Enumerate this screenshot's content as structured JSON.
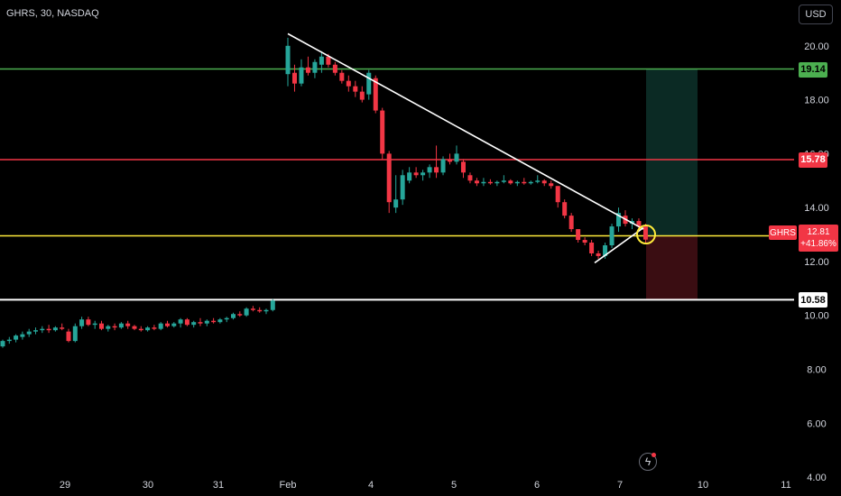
{
  "header": {
    "symbol": "GHRS, 30, NASDAQ",
    "currency": "USD"
  },
  "levels": [
    {
      "price": 19.14,
      "label": "19.14",
      "color": "#4caf50",
      "text_color": "#000000"
    },
    {
      "price": 15.78,
      "label": "15.78",
      "color": "#f23645",
      "text_color": "#ffffff"
    },
    {
      "price": 12.95,
      "label": "",
      "color": "#ffeb3b",
      "text_color": "#000000"
    },
    {
      "price": 10.58,
      "label": "10.58",
      "color": "#ffffff",
      "text_color": "#000000"
    }
  ],
  "last_price": {
    "ticker": "GHRS",
    "price": "12.81",
    "change": "+41.86%"
  },
  "chart_data": {
    "type": "candlestick",
    "y_axis": {
      "ticks": [
        4.0,
        6.0,
        8.0,
        10.0,
        12.0,
        14.0,
        16.0,
        18.0,
        20.0
      ],
      "tick_labels": [
        "4.00",
        "6.00",
        "8.00",
        "10.00",
        "12.00",
        "14.00",
        "16.00",
        "18.00",
        "20.00"
      ],
      "ylim": [
        3.3,
        21.7
      ]
    },
    "x_axis": {
      "labels": [
        "29",
        "30",
        "31",
        "Feb",
        "4",
        "5",
        "6",
        "7",
        "10",
        "11"
      ],
      "positions": [
        72,
        164,
        242,
        319,
        411,
        503,
        595,
        687,
        779,
        871
      ]
    },
    "candles_pre": [
      [
        8.85,
        9.1,
        8.8,
        9.05
      ],
      [
        9.05,
        9.2,
        8.95,
        9.1
      ],
      [
        9.1,
        9.3,
        9.0,
        9.25
      ],
      [
        9.2,
        9.4,
        9.1,
        9.3
      ],
      [
        9.3,
        9.5,
        9.2,
        9.4
      ],
      [
        9.4,
        9.55,
        9.3,
        9.45
      ],
      [
        9.45,
        9.6,
        9.35,
        9.5
      ],
      [
        9.5,
        9.65,
        9.35,
        9.45
      ],
      [
        9.45,
        9.6,
        9.4,
        9.55
      ],
      [
        9.55,
        9.7,
        9.45,
        9.5
      ],
      [
        9.4,
        9.5,
        9.0,
        9.05
      ],
      [
        9.05,
        9.7,
        9.0,
        9.6
      ],
      [
        9.6,
        9.95,
        9.5,
        9.85
      ],
      [
        9.85,
        9.95,
        9.6,
        9.65
      ],
      [
        9.65,
        9.8,
        9.5,
        9.7
      ],
      [
        9.7,
        9.8,
        9.45,
        9.5
      ],
      [
        9.5,
        9.65,
        9.4,
        9.6
      ],
      [
        9.6,
        9.7,
        9.45,
        9.55
      ],
      [
        9.55,
        9.75,
        9.5,
        9.7
      ],
      [
        9.7,
        9.8,
        9.5,
        9.6
      ],
      [
        9.6,
        9.65,
        9.45,
        9.5
      ],
      [
        9.5,
        9.6,
        9.4,
        9.45
      ],
      [
        9.45,
        9.6,
        9.4,
        9.55
      ],
      [
        9.55,
        9.65,
        9.45,
        9.5
      ],
      [
        9.5,
        9.75,
        9.45,
        9.7
      ],
      [
        9.7,
        9.8,
        9.55,
        9.6
      ],
      [
        9.6,
        9.75,
        9.55,
        9.7
      ],
      [
        9.7,
        9.9,
        9.55,
        9.85
      ],
      [
        9.85,
        9.9,
        9.6,
        9.65
      ],
      [
        9.65,
        9.8,
        9.55,
        9.75
      ],
      [
        9.75,
        9.9,
        9.6,
        9.7
      ],
      [
        9.7,
        9.85,
        9.6,
        9.8
      ],
      [
        9.8,
        9.9,
        9.7,
        9.75
      ],
      [
        9.75,
        9.9,
        9.7,
        9.85
      ],
      [
        9.85,
        9.95,
        9.75,
        9.9
      ],
      [
        9.9,
        10.1,
        9.85,
        10.05
      ],
      [
        10.05,
        10.15,
        9.95,
        10.0
      ],
      [
        10.0,
        10.3,
        9.95,
        10.25
      ],
      [
        10.25,
        10.35,
        10.15,
        10.2
      ],
      [
        10.2,
        10.3,
        10.1,
        10.15
      ],
      [
        10.15,
        10.25,
        10.05,
        10.2
      ],
      [
        10.2,
        10.6,
        10.15,
        10.55
      ]
    ],
    "candles_feb": [
      [
        18.95,
        20.3,
        18.5,
        20.0
      ],
      [
        19.0,
        19.3,
        18.3,
        18.6
      ],
      [
        18.6,
        19.5,
        18.5,
        19.2
      ],
      [
        19.2,
        19.6,
        18.9,
        19.0
      ],
      [
        19.0,
        19.5,
        18.8,
        19.4
      ],
      [
        19.3,
        19.8,
        19.0,
        19.6
      ],
      [
        19.6,
        19.7,
        19.2,
        19.3
      ],
      [
        19.3,
        19.4,
        18.9,
        19.0
      ],
      [
        19.0,
        19.1,
        18.6,
        18.7
      ],
      [
        18.7,
        18.9,
        18.3,
        18.5
      ],
      [
        18.5,
        18.7,
        18.1,
        18.3
      ],
      [
        18.3,
        18.5,
        17.9,
        18.0
      ],
      [
        18.2,
        19.1,
        18.0,
        19.0
      ],
      [
        18.8,
        18.9,
        17.5,
        17.6
      ],
      [
        17.6,
        17.7,
        15.8,
        16.0
      ],
      [
        16.0,
        16.1,
        13.8,
        14.2
      ],
      [
        14.0,
        15.2,
        13.8,
        14.3
      ],
      [
        14.3,
        15.4,
        14.1,
        15.2
      ],
      [
        15.0,
        15.5,
        14.9,
        15.3
      ],
      [
        15.3,
        15.5,
        15.1,
        15.2
      ],
      [
        15.2,
        15.4,
        15.0,
        15.3
      ],
      [
        15.3,
        15.6,
        15.1,
        15.5
      ],
      [
        15.5,
        16.3,
        15.1,
        15.3
      ],
      [
        15.3,
        15.9,
        15.2,
        15.8
      ],
      [
        15.8,
        16.0,
        15.6,
        15.7
      ],
      [
        15.7,
        16.3,
        15.6,
        16.0
      ],
      [
        15.7,
        15.8,
        15.1,
        15.3
      ],
      [
        15.2,
        15.3,
        14.9,
        15.0
      ],
      [
        15.0,
        15.1,
        14.8,
        14.9
      ],
      [
        14.9,
        15.1,
        14.8,
        14.95
      ],
      [
        14.95,
        15.05,
        14.85,
        14.9
      ],
      [
        14.9,
        15.0,
        14.8,
        14.95
      ],
      [
        14.95,
        15.2,
        14.9,
        15.0
      ],
      [
        15.0,
        15.05,
        14.85,
        14.9
      ],
      [
        14.9,
        15.0,
        14.8,
        14.95
      ],
      [
        14.95,
        15.1,
        14.85,
        14.9
      ],
      [
        14.9,
        15.0,
        14.85,
        14.95
      ],
      [
        14.95,
        15.2,
        14.9,
        15.0
      ],
      [
        15.0,
        15.05,
        14.8,
        14.9
      ],
      [
        14.9,
        15.0,
        14.7,
        14.8
      ],
      [
        14.8,
        14.8,
        14.0,
        14.2
      ],
      [
        14.2,
        14.3,
        13.6,
        13.7
      ],
      [
        13.7,
        13.8,
        13.1,
        13.2
      ],
      [
        13.2,
        13.2,
        12.7,
        12.8
      ],
      [
        12.8,
        12.9,
        12.6,
        12.7
      ],
      [
        12.7,
        12.8,
        12.2,
        12.3
      ],
      [
        12.3,
        12.4,
        12.1,
        12.2
      ],
      [
        12.2,
        12.7,
        12.1,
        12.6
      ],
      [
        12.6,
        13.4,
        12.5,
        13.3
      ],
      [
        13.3,
        14.0,
        13.1,
        13.8
      ],
      [
        13.7,
        13.9,
        13.3,
        13.4
      ],
      [
        13.4,
        13.6,
        13.2,
        13.5
      ],
      [
        13.5,
        13.6,
        13.2,
        13.3
      ],
      [
        13.3,
        13.4,
        12.7,
        12.81
      ]
    ],
    "trendlines": [
      {
        "from": {
          "day": "Feb",
          "price": 20.45
        },
        "to": {
          "day": "7",
          "price": 13.2
        },
        "color": "#ffffff"
      },
      {
        "from": {
          "day": "6",
          "price": 11.95
        },
        "to": {
          "day": "7",
          "price": 13.25
        },
        "color": "#ffffff"
      }
    ],
    "position_tool": {
      "entry": 12.95,
      "target": 19.14,
      "stop": 10.58,
      "profit_color": "#0b2a24",
      "loss_color": "#3a0d12"
    }
  }
}
